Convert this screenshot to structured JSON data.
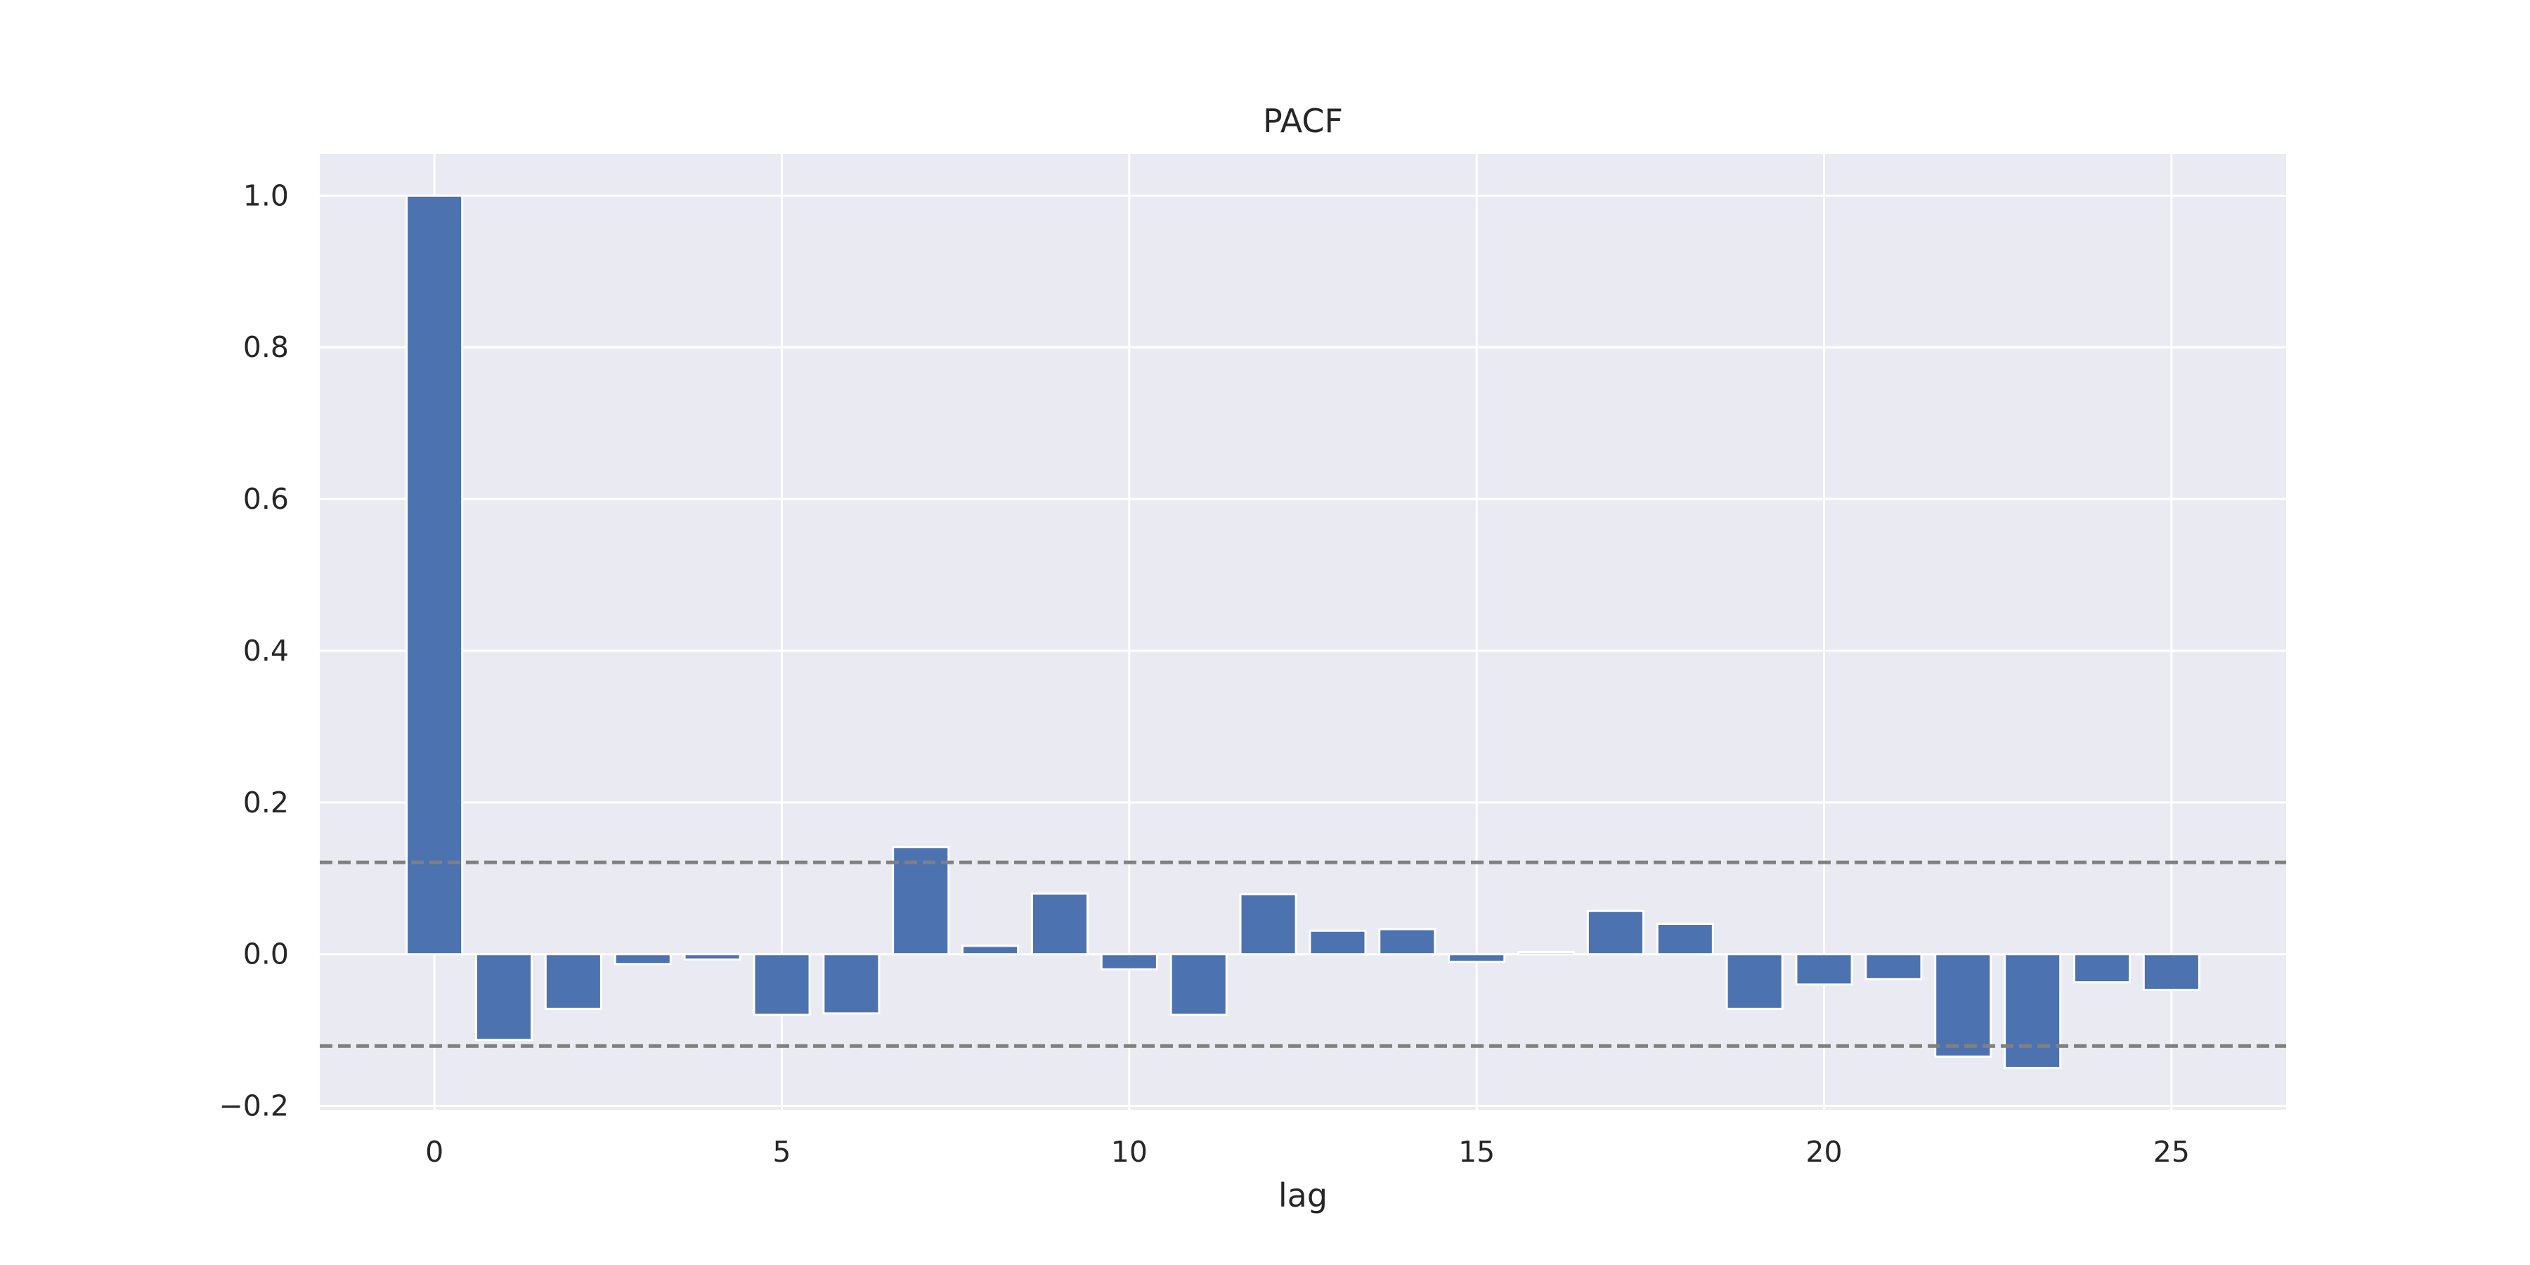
{
  "chart_data": {
    "type": "bar",
    "title": "PACF",
    "xlabel": "lag",
    "ylabel": "",
    "x": [
      0,
      1,
      2,
      3,
      4,
      5,
      6,
      7,
      8,
      9,
      10,
      11,
      12,
      13,
      14,
      15,
      16,
      17,
      18,
      19,
      20,
      21,
      22,
      23,
      24,
      25
    ],
    "values": [
      1.0,
      -0.113,
      -0.072,
      -0.013,
      -0.007,
      -0.08,
      -0.078,
      0.141,
      0.011,
      0.08,
      -0.02,
      -0.08,
      0.079,
      0.031,
      0.033,
      -0.01,
      0.003,
      0.057,
      0.04,
      -0.072,
      -0.04,
      -0.033,
      -0.135,
      -0.15,
      -0.037,
      -0.047
    ],
    "confidence_band": [
      -0.121,
      0.121
    ],
    "xlim": [
      -1.65,
      26.65
    ],
    "ylim": [
      -0.205,
      1.055
    ],
    "xticks": [
      0,
      5,
      10,
      15,
      20,
      25
    ],
    "xtick_labels": [
      "0",
      "5",
      "10",
      "15",
      "20",
      "25"
    ],
    "yticks": [
      -0.2,
      0.0,
      0.2,
      0.4,
      0.6,
      0.8,
      1.0
    ],
    "ytick_labels": [
      "−0.2",
      "0.0",
      "0.2",
      "0.4",
      "0.6",
      "0.8",
      "1.0"
    ],
    "grid": true,
    "colors": {
      "bar": "#4c72b0",
      "plot_background": "#eaeaf2",
      "grid": "#ffffff",
      "confidence_line": "#808080"
    }
  }
}
